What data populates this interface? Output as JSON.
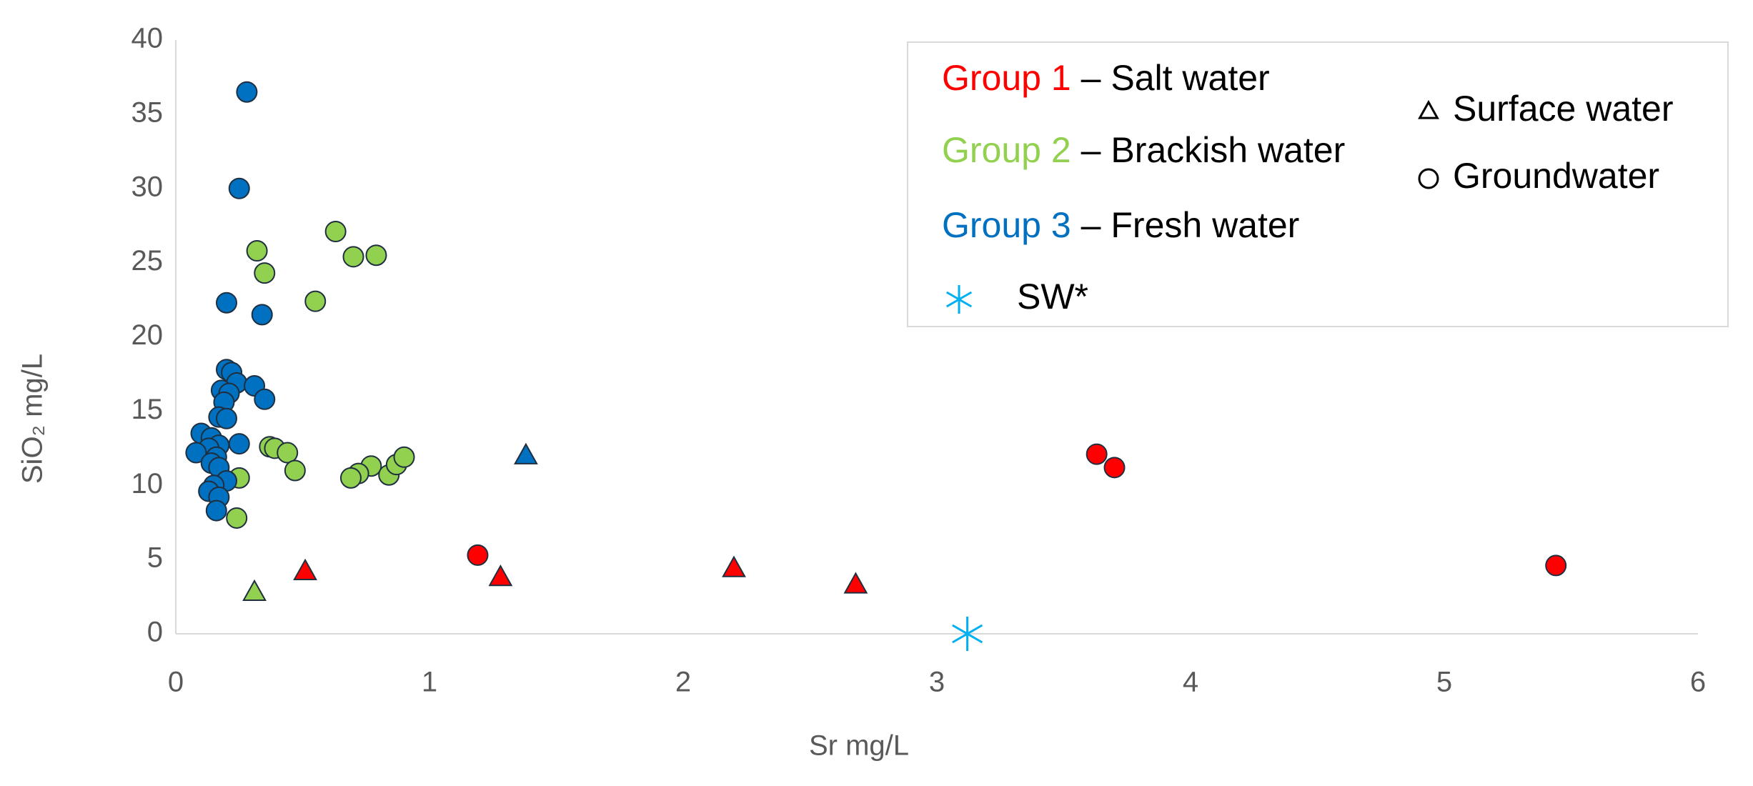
{
  "chart_data": {
    "type": "scatter",
    "x_label": "Sr mg/L",
    "y_label": "SiO₂ mg/L",
    "xlim": [
      0,
      6
    ],
    "xticks": [
      0,
      1,
      2,
      3,
      4,
      5,
      6
    ],
    "ylim": [
      0,
      40
    ],
    "yticks": [
      0,
      5,
      10,
      15,
      20,
      25,
      30,
      35,
      40
    ],
    "legend": {
      "groups": [
        {
          "label": "Group 1",
          "description": "– Salt water",
          "color": "#ff0000"
        },
        {
          "label": "Group 2",
          "description": "– Brackish water",
          "color": "#92d050"
        },
        {
          "label": "Group 3",
          "description": "– Fresh water",
          "color": "#0070c0"
        }
      ],
      "markers": [
        {
          "marker": "triangle",
          "label": "Surface water"
        },
        {
          "marker": "circle",
          "label": "Groundwater"
        }
      ],
      "reference": {
        "marker": "asterisk",
        "label": "SW*",
        "color": "#00b0f0"
      }
    },
    "series": [
      {
        "group": 0,
        "marker": "triangle",
        "x": [
          0.51,
          1.28,
          2.2,
          2.68
        ],
        "values": [
          4.2,
          3.8,
          4.4,
          3.3
        ]
      },
      {
        "group": 0,
        "marker": "circle",
        "x": [
          1.19,
          3.63,
          3.7,
          5.44
        ],
        "values": [
          5.3,
          12.1,
          11.2,
          4.6
        ]
      },
      {
        "group": 1,
        "marker": "triangle",
        "x": [
          0.31
        ],
        "values": [
          2.8
        ]
      },
      {
        "group": 1,
        "marker": "circle",
        "x": [
          0.63,
          0.32,
          0.35,
          0.7,
          0.79,
          0.55,
          0.37,
          0.39,
          0.44,
          0.47,
          0.77,
          0.72,
          0.69,
          0.84,
          0.87,
          0.9,
          0.25,
          0.24
        ],
        "values": [
          27.1,
          25.8,
          24.3,
          25.4,
          25.5,
          22.4,
          12.6,
          12.5,
          12.2,
          11.0,
          11.3,
          10.8,
          10.5,
          10.7,
          11.4,
          11.9,
          10.5,
          7.8
        ]
      },
      {
        "group": 2,
        "marker": "triangle",
        "x": [
          1.38
        ],
        "values": [
          12.0
        ]
      },
      {
        "group": 2,
        "marker": "circle",
        "x": [
          0.28,
          0.25,
          0.2,
          0.34,
          0.2,
          0.22,
          0.24,
          0.31,
          0.35,
          0.18,
          0.21,
          0.19,
          0.17,
          0.2,
          0.1,
          0.14,
          0.17,
          0.13,
          0.25,
          0.08,
          0.16,
          0.14,
          0.17,
          0.2,
          0.15,
          0.13,
          0.17,
          0.16
        ],
        "values": [
          36.5,
          30.0,
          22.3,
          21.5,
          17.8,
          17.6,
          16.9,
          16.7,
          15.8,
          16.4,
          16.2,
          15.6,
          14.6,
          14.5,
          13.5,
          13.2,
          12.7,
          12.5,
          12.8,
          12.2,
          11.9,
          11.5,
          11.2,
          10.3,
          10.0,
          9.6,
          9.2,
          8.3
        ]
      },
      {
        "reference": true,
        "x": [
          3.12
        ],
        "values": [
          0
        ]
      }
    ]
  }
}
